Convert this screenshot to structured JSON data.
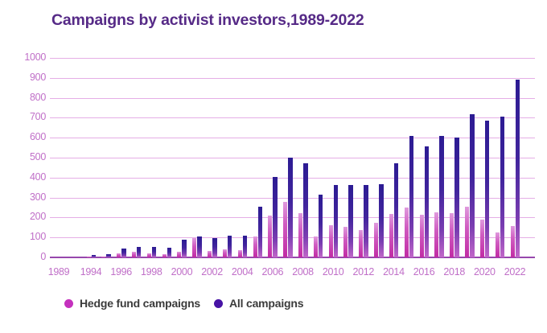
{
  "title": "Campaigns by activist investors,1989-2022",
  "chart_data": {
    "type": "bar",
    "title": "Campaigns by activist investors,1989-2022",
    "categories": [
      1989,
      1994,
      1995,
      1996,
      1997,
      1998,
      1999,
      2000,
      2001,
      2002,
      2003,
      2004,
      2005,
      2006,
      2007,
      2008,
      2009,
      2010,
      2011,
      2012,
      2013,
      2014,
      2015,
      2016,
      2017,
      2018,
      2019,
      2020,
      2021,
      2022
    ],
    "series": [
      {
        "name": "Hedge fund campaigns",
        "values": [
          1,
          3,
          5,
          22,
          27,
          20,
          17,
          27,
          98,
          34,
          40,
          36,
          103,
          208,
          280,
          222,
          106,
          160,
          155,
          137,
          175,
          218,
          250,
          215,
          226,
          222,
          255,
          190,
          123,
          157
        ]
      },
      {
        "name": "All campaigns",
        "values": [
          2,
          14,
          17,
          44,
          54,
          54,
          50,
          88,
          103,
          97,
          110,
          108,
          255,
          405,
          500,
          473,
          313,
          363,
          363,
          363,
          368,
          470,
          610,
          558,
          610,
          600,
          718,
          685,
          706,
          890
        ]
      }
    ],
    "xlabel": "",
    "ylabel": "",
    "ylim": [
      0,
      1000
    ],
    "ytick_step": 100,
    "ytick_labels": [
      "0",
      "100",
      "200",
      "300",
      "400",
      "500",
      "600",
      "700",
      "800",
      "900",
      "1000"
    ],
    "x_labeled_years": [
      1989,
      1994,
      1996,
      1998,
      2000,
      2002,
      2004,
      2006,
      2008,
      2010,
      2012,
      2014,
      2016,
      2018,
      2020,
      2022
    ],
    "grid": true,
    "legend_position": "bottom"
  },
  "legend": {
    "items": [
      {
        "label": "Hedge fund campaigns",
        "color": "#c431bd"
      },
      {
        "label": "All campaigns",
        "color": "#4713a5"
      }
    ]
  },
  "colors": {
    "title": "#562a87",
    "axis_label": "#c06fc8",
    "gridline": "#e5aee6",
    "baseline": "#9747ad",
    "hedge_top": "#e09ade",
    "hedge_mid": "#d05cc1",
    "hedge_bottom": "#c12ba4",
    "all_top": "#2c1b93",
    "all_mid": "#41259d",
    "all_mid2": "#7a3db1",
    "all_bottom": "#c167c9"
  }
}
